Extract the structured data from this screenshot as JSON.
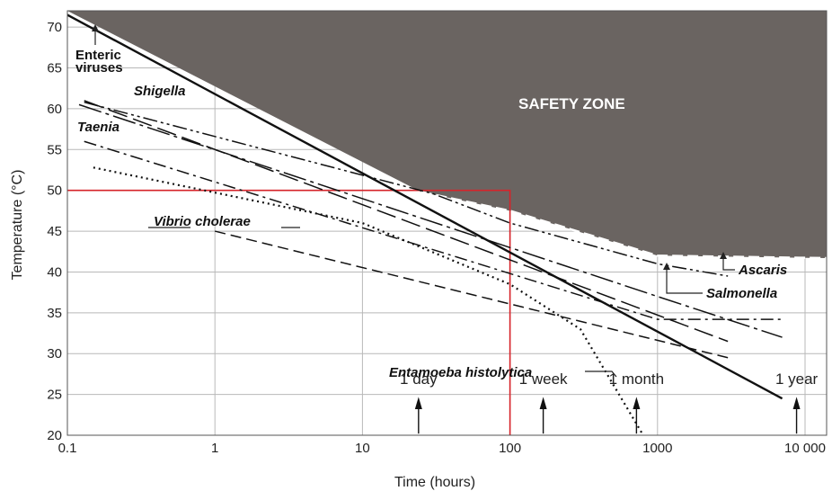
{
  "chart_data": {
    "type": "line",
    "xlabel": "Time (hours)",
    "ylabel": "Temperature (°C)",
    "xscale": "log",
    "xlim": [
      0.1,
      14000
    ],
    "ylim": [
      20,
      72
    ],
    "x_ticks": [
      0.1,
      1,
      10,
      100,
      1000,
      10000
    ],
    "x_tick_labels": [
      "0.1",
      "1",
      "10",
      "100",
      "1000",
      "10 000"
    ],
    "y_ticks": [
      20,
      25,
      30,
      35,
      40,
      45,
      50,
      55,
      60,
      65,
      70
    ],
    "y_tick_labels": [
      "20",
      "25",
      "30",
      "35",
      "40",
      "45",
      "50",
      "55",
      "60",
      "65",
      "70"
    ],
    "grid": true,
    "safety_zone": {
      "label": "SAFETY ZONE",
      "color": "#6a6461",
      "boundary": [
        [
          0.1,
          72
        ],
        [
          25,
          49.8
        ],
        [
          100,
          47.5
        ],
        [
          1000,
          42
        ],
        [
          14000,
          41.7
        ]
      ]
    },
    "reference_box": {
      "x": 100,
      "y": 50,
      "color": "#d6232a"
    },
    "time_markers": [
      {
        "label": "1 day",
        "x": 24
      },
      {
        "label": "1 week",
        "x": 168
      },
      {
        "label": "1 month",
        "x": 720
      },
      {
        "label": "1 year",
        "x": 8760
      }
    ],
    "series": [
      {
        "name": "Enteric viruses",
        "style": "solid-bold",
        "x": [
          0.1,
          7000
        ],
        "y": [
          71.5,
          24.5
        ]
      },
      {
        "name": "Shigella",
        "style": "long-dash",
        "x": [
          0.13,
          3000
        ],
        "y": [
          61,
          31.5
        ]
      },
      {
        "name": "Taenia",
        "style": "dash-dot",
        "x": [
          0.13,
          1000,
          7000
        ],
        "y": [
          56,
          34.2,
          34.2
        ]
      },
      {
        "name": "Vibrio cholerae",
        "style": "dash",
        "x": [
          1,
          3000
        ],
        "y": [
          45,
          29.5
        ]
      },
      {
        "name": "Entamoeba histolytica",
        "style": "dotted",
        "x": [
          0.15,
          10,
          100,
          300,
          800
        ],
        "y": [
          52.8,
          46,
          38.5,
          33,
          20
        ]
      },
      {
        "name": "Ascaris",
        "style": "dash-dot-dot",
        "x": [
          0.13,
          30,
          100,
          1000,
          3000
        ],
        "y": [
          60.8,
          49.6,
          46,
          41,
          39.5
        ]
      },
      {
        "name": "Salmonella",
        "style": "long-dash-dot",
        "x": [
          0.12,
          1000,
          7000
        ],
        "y": [
          60.5,
          37,
          32
        ]
      }
    ],
    "labels": {
      "enteric": "Enteric\nviruses",
      "enteric_line1": "Enteric",
      "enteric_line2": "viruses",
      "shigella": "Shigella",
      "taenia": "Taenia",
      "vibrio": "Vibrio cholerae",
      "entamoeba": "Entamoeba histolytica",
      "ascaris": "Ascaris",
      "salmonella": "Salmonella"
    }
  }
}
